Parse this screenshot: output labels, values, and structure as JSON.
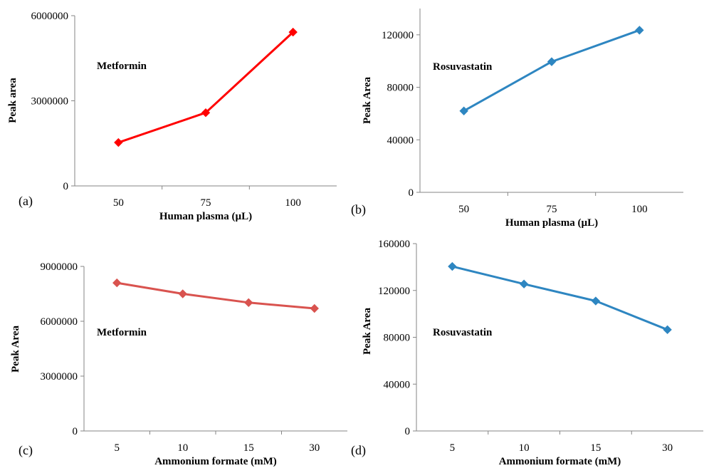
{
  "chart_data": [
    {
      "panel": "(a)",
      "type": "line",
      "annotation": "Metformin",
      "xlabel": "Human plasma (µL)",
      "ylabel": "Peak area",
      "categories": [
        "50",
        "75",
        "100"
      ],
      "values": [
        1530000,
        2580000,
        5420000
      ],
      "ylim": [
        0,
        6000000
      ],
      "yticks": [
        "0",
        "3000000",
        "6000000"
      ],
      "color": "#ff0000"
    },
    {
      "panel": "(b)",
      "type": "line",
      "annotation": "Rosuvastatin",
      "xlabel": "Human plasma (µL)",
      "ylabel": "Peak Area",
      "categories": [
        "50",
        "75",
        "100"
      ],
      "values": [
        62000,
        99500,
        123500
      ],
      "ylim": [
        0,
        140000
      ],
      "yticks": [
        "0",
        "40000",
        "80000",
        "120000"
      ],
      "color": "#2e86c1"
    },
    {
      "panel": "(c)",
      "type": "line",
      "annotation": "Metformin",
      "xlabel": "Ammonium formate (mM)",
      "ylabel": "Peak Area",
      "categories": [
        "5",
        "10",
        "15",
        "30"
      ],
      "values": [
        8100000,
        7500000,
        7020000,
        6700000
      ],
      "ylim": [
        0,
        9000000
      ],
      "yticks": [
        "0",
        "3000000",
        "6000000",
        "9000000"
      ],
      "color": "#d9534f"
    },
    {
      "panel": "(d)",
      "type": "line",
      "annotation": "Rosuvastatin",
      "xlabel": "Ammonium formate (mM)",
      "ylabel": "Peak Area",
      "categories": [
        "5",
        "10",
        "15",
        "30"
      ],
      "values": [
        140500,
        125500,
        111000,
        86500
      ],
      "ylim": [
        0,
        160000
      ],
      "yticks": [
        "0",
        "40000",
        "80000",
        "120000",
        "160000"
      ],
      "color": "#2e86c1"
    }
  ]
}
